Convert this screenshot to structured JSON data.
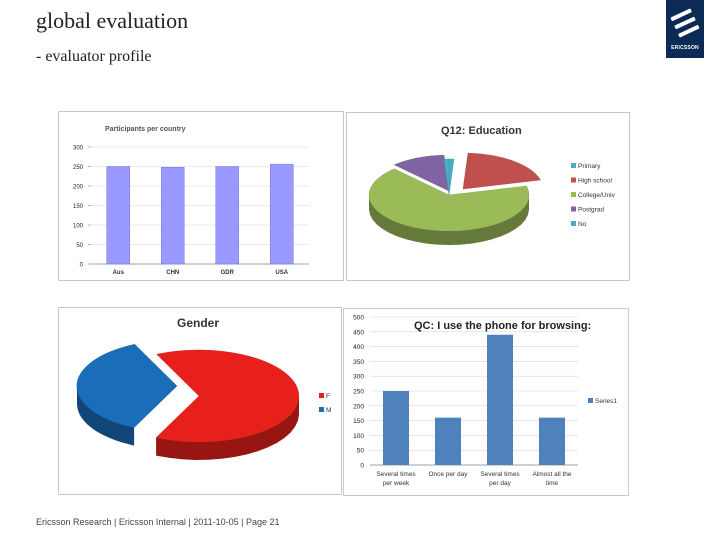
{
  "header": {
    "title": "global evaluation",
    "subtitle": "- evaluator profile",
    "logo_text": "ERICSSON"
  },
  "footer": "Ericsson Research | Ericsson Internal | 2011-10-05 | Page 21",
  "colors": {
    "logo_bg": "#0b2a55",
    "bar_lavender": "#9999ff",
    "bar_blue": "#4f81bd",
    "pie_red": "#e8201c",
    "pie_blue": "#1a6db8",
    "edu_primary": "#4bacc6",
    "edu_highschool": "#c0504d",
    "edu_college": "#9bbb59",
    "edu_postgrad": "#8064a2",
    "edu_no": "#4bacc6"
  },
  "chart_data": [
    {
      "type": "bar",
      "title": "Participants per country",
      "categories": [
        "Aus",
        "CHN",
        "GDR",
        "USA"
      ],
      "values": [
        250,
        248,
        250,
        256
      ],
      "ylim": [
        0,
        300
      ],
      "yticks": [
        "0",
        "50",
        "100",
        "150",
        "200",
        "250",
        "300"
      ],
      "grid": true
    },
    {
      "type": "pie",
      "title": "Q12: Education",
      "labels": [
        "Primary",
        "High school",
        "College/Univ",
        "Postgrad",
        "No"
      ],
      "values": [
        1,
        20,
        67,
        11,
        1
      ],
      "legend": "right"
    },
    {
      "type": "pie",
      "title": "Gender",
      "labels": [
        "F",
        "M"
      ],
      "values": [
        64,
        36
      ],
      "legend": "right"
    },
    {
      "type": "bar",
      "title": "QC: I use the phone for browsing:",
      "categories": [
        [
          "Several times",
          "per week"
        ],
        [
          "Once per day"
        ],
        [
          "Several times",
          "per day"
        ],
        [
          "Almost all the",
          "time"
        ]
      ],
      "series": [
        {
          "name": "Series1",
          "values": [
            250,
            160,
            440,
            160
          ]
        }
      ],
      "ylim": [
        0,
        500
      ],
      "yticks": [
        "0",
        "50",
        "100",
        "150",
        "200",
        "250",
        "300",
        "350",
        "400",
        "450",
        "500"
      ],
      "grid": true,
      "legend": "right"
    }
  ]
}
